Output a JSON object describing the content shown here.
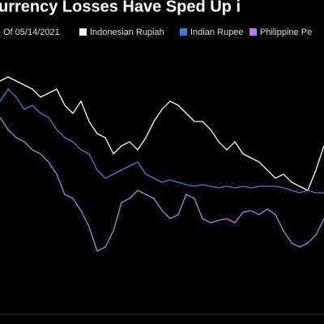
{
  "chart_data": {
    "type": "line",
    "title": "urrency Losses Have Sped Up i",
    "subtitle": "Of 05/14/2021",
    "ylim": [
      0,
      100
    ],
    "series": [
      {
        "name": "Indonesian Rupiah",
        "color": "#ffffff",
        "values": [
          75,
          76.25,
          75,
          73.75,
          72.5,
          70,
          71.25,
          72.5,
          67.5,
          65,
          68.75,
          62.5,
          58.75,
          57.5,
          52.5,
          55,
          56.25,
          53.75,
          57.5,
          62.5,
          66.25,
          68.75,
          67.5,
          65,
          62.5,
          62.5,
          60,
          56.25,
          53.75,
          56.25,
          52.5,
          51.25,
          50,
          47.5,
          45,
          46.25,
          43.75,
          42.5,
          41.25,
          47.5,
          55
        ]
      },
      {
        "name": "Indian Rupee",
        "color": "#3f7fd8",
        "values": [
          68.75,
          72.5,
          70,
          66.25,
          67.5,
          65,
          63.75,
          60,
          57.5,
          56.25,
          53.75,
          52.5,
          47.5,
          45,
          46.25,
          47.5,
          48.75,
          50,
          46.25,
          45,
          43.75,
          44.5,
          43.75,
          43,
          42.5,
          43,
          42.5,
          42,
          42.5,
          42,
          42.5,
          42,
          42.5,
          42.5,
          42.5,
          42,
          41.25,
          40.5,
          41.25,
          40.5,
          40.5
        ]
      },
      {
        "name": "Philippine Pe",
        "color": "#b47ee5",
        "values": [
          63.75,
          60,
          57.5,
          56.25,
          53.75,
          52.5,
          50,
          46.25,
          40,
          38.75,
          35,
          30,
          22.5,
          23.75,
          28.75,
          37.5,
          38.75,
          41.25,
          40,
          38.75,
          35,
          32.5,
          33.75,
          40,
          38.75,
          32.5,
          31.25,
          32,
          32.5,
          31.25,
          34.5,
          35,
          33.75,
          35.5,
          33.75,
          28.75,
          25,
          23.75,
          25,
          27.5,
          32.5
        ]
      }
    ]
  }
}
